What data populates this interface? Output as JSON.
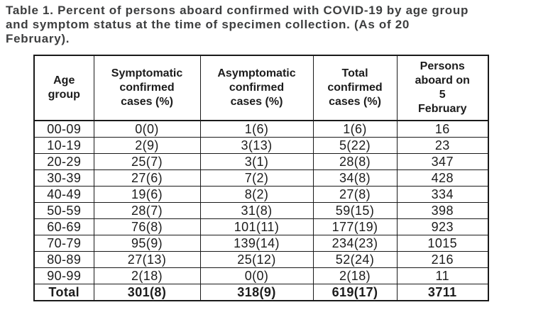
{
  "caption": {
    "full_text": "Table 1. Percent of persons aboard confirmed with COVID-19 by age group and symptom status at the time of specimen collection. (As of 20 February).",
    "lines": [
      "Table 1. Percent of persons aboard confirmed with COVID-19 by age group",
      "and symptom status at the time of specimen collection. (As of 20",
      "February)."
    ],
    "color": "#3d3e3f"
  },
  "table": {
    "headers": [
      "Age\ngroup",
      "Symptomatic\nconfirmed\ncases (%)",
      "Asymptomatic\nconfirmed\ncases (%)",
      "Total\nconfirmed\ncases (%)",
      "Persons\naboard on\n5\nFebruary"
    ],
    "rows": [
      [
        "00-09",
        "0(0)",
        "1(6)",
        "1(6)",
        "16"
      ],
      [
        "10-19",
        "2(9)",
        "3(13)",
        "5(22)",
        "23"
      ],
      [
        "20-29",
        "25(7)",
        "3(1)",
        "28(8)",
        "347"
      ],
      [
        "30-39",
        "27(6)",
        "7(2)",
        "34(8)",
        "428"
      ],
      [
        "40-49",
        "19(6)",
        "8(2)",
        "27(8)",
        "334"
      ],
      [
        "50-59",
        "28(7)",
        "31(8)",
        "59(15)",
        "398"
      ],
      [
        "60-69",
        "76(8)",
        "101(11)",
        "177(19)",
        "923"
      ],
      [
        "70-79",
        "95(9)",
        "139(14)",
        "234(23)",
        "1015"
      ],
      [
        "80-89",
        "27(13)",
        "25(12)",
        "52(24)",
        "216"
      ],
      [
        "90-99",
        "2(18)",
        "0(0)",
        "2(18)",
        "11"
      ]
    ],
    "total": [
      "Total",
      "301(8)",
      "318(9)",
      "619(17)",
      "3711"
    ],
    "text_color": "#1c1c1c",
    "border_color": "#1a1a1a"
  },
  "chart_data": {
    "type": "table",
    "title": "Table 1. Percent of persons aboard confirmed with COVID-19 by age group and symptom status at the time of specimen collection. (As of 20 February).",
    "columns": [
      "Age group",
      "Symptomatic confirmed cases (%)",
      "Asymptomatic confirmed cases (%)",
      "Total confirmed cases (%)",
      "Persons aboard on 5 February"
    ],
    "rows": [
      [
        "00-09",
        "0(0)",
        "1(6)",
        "1(6)",
        "16"
      ],
      [
        "10-19",
        "2(9)",
        "3(13)",
        "5(22)",
        "23"
      ],
      [
        "20-29",
        "25(7)",
        "3(1)",
        "28(8)",
        "347"
      ],
      [
        "30-39",
        "27(6)",
        "7(2)",
        "34(8)",
        "428"
      ],
      [
        "40-49",
        "19(6)",
        "8(2)",
        "27(8)",
        "334"
      ],
      [
        "50-59",
        "28(7)",
        "31(8)",
        "59(15)",
        "398"
      ],
      [
        "60-69",
        "76(8)",
        "101(11)",
        "177(19)",
        "923"
      ],
      [
        "70-79",
        "95(9)",
        "139(14)",
        "234(23)",
        "1015"
      ],
      [
        "80-89",
        "27(13)",
        "25(12)",
        "52(24)",
        "216"
      ],
      [
        "90-99",
        "2(18)",
        "0(0)",
        "2(18)",
        "11"
      ],
      [
        "Total",
        "301(8)",
        "318(9)",
        "619(17)",
        "3711"
      ]
    ]
  }
}
